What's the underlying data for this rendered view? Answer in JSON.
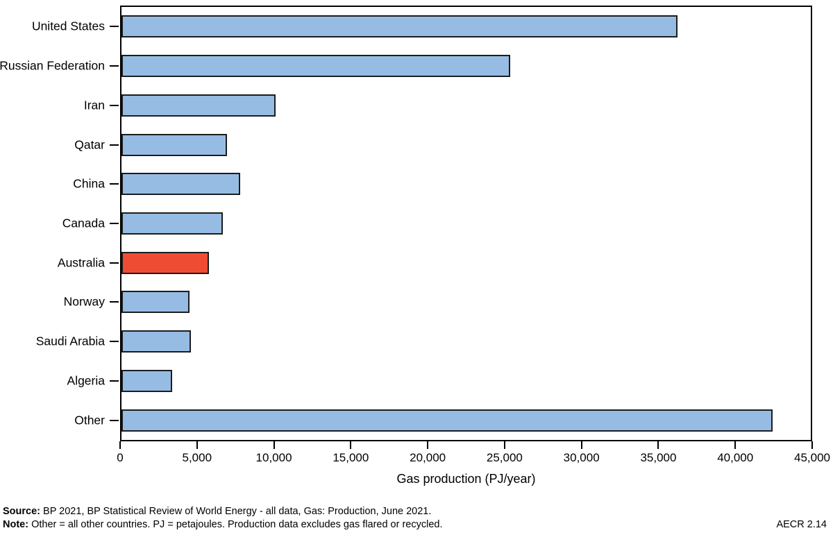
{
  "chart_data": {
    "type": "bar",
    "orientation": "horizontal",
    "title": "",
    "xlabel": "Gas production (PJ/year)",
    "ylabel": "",
    "xlim": [
      0,
      45000
    ],
    "grid": false,
    "legend": false,
    "categories": [
      "United States",
      "Russian Federation",
      "Iran",
      "Qatar",
      "China",
      "Canada",
      "Australia",
      "Norway",
      "Saudi Arabia",
      "Algeria",
      "Other"
    ],
    "values": [
      36300,
      25400,
      10050,
      6900,
      7750,
      6600,
      5700,
      4450,
      4550,
      3300,
      42500
    ],
    "highlight_category": "Australia",
    "bar_color": "#96bce4",
    "highlight_color": "#ee4d33",
    "bar_border_color": "#1c1c1c",
    "xticks": [
      0,
      5000,
      10000,
      15000,
      20000,
      25000,
      30000,
      35000,
      40000,
      45000
    ],
    "xtick_labels": [
      "0",
      "5,000",
      "10,000",
      "15,000",
      "20,000",
      "25,000",
      "30,000",
      "35,000",
      "40,000",
      "45,000"
    ]
  },
  "footer": {
    "source_label": "Source:",
    "source_text": " BP 2021, BP Statistical Review of World Energy - all data, Gas: Production, June 2021.",
    "note_label": "Note:",
    "note_text": " Other = all other countries. PJ = petajoules. Production data excludes gas flared or recycled.",
    "figure_ref": "AECR 2.14"
  }
}
